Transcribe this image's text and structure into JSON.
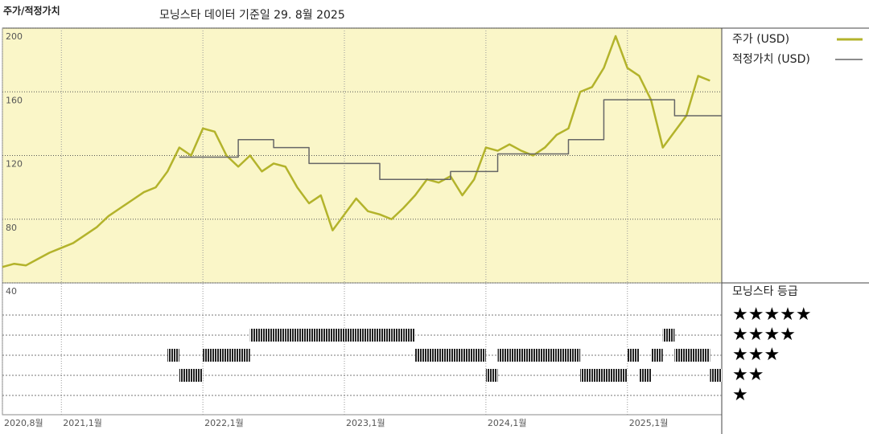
{
  "chart_data": {
    "type": "line",
    "title": "주가/적정가치",
    "subtitle": "모닝스타 데이터 기준일 29. 8월 2025",
    "x": [
      "2020-08",
      "2020-09",
      "2020-10",
      "2020-11",
      "2020-12",
      "2021-01",
      "2021-02",
      "2021-03",
      "2021-04",
      "2021-05",
      "2021-06",
      "2021-07",
      "2021-08",
      "2021-09",
      "2021-10",
      "2021-11",
      "2021-12",
      "2022-01",
      "2022-02",
      "2022-03",
      "2022-04",
      "2022-05",
      "2022-06",
      "2022-07",
      "2022-08",
      "2022-09",
      "2022-10",
      "2022-11",
      "2022-12",
      "2023-01",
      "2023-02",
      "2023-03",
      "2023-04",
      "2023-05",
      "2023-06",
      "2023-07",
      "2023-08",
      "2023-09",
      "2023-10",
      "2023-11",
      "2023-12",
      "2024-01",
      "2024-02",
      "2024-03",
      "2024-04",
      "2024-05",
      "2024-06",
      "2024-07",
      "2024-08",
      "2024-09",
      "2024-10",
      "2024-11",
      "2024-12",
      "2025-01",
      "2025-02",
      "2025-03",
      "2025-04",
      "2025-05",
      "2025-06",
      "2025-07",
      "2025-08"
    ],
    "series": [
      {
        "name": "주가 (USD)",
        "color": "#b3b32b",
        "values": [
          50,
          52,
          51,
          55,
          59,
          62,
          65,
          70,
          75,
          82,
          87,
          92,
          97,
          100,
          110,
          125,
          120,
          137,
          135,
          120,
          113,
          120,
          110,
          115,
          113,
          100,
          90,
          95,
          73,
          83,
          93,
          85,
          83,
          80,
          87,
          95,
          105,
          103,
          107,
          95,
          105,
          125,
          123,
          127,
          123,
          120,
          125,
          133,
          137,
          160,
          163,
          175,
          195,
          175,
          170,
          155,
          125,
          135,
          145,
          170,
          167
        ]
      },
      {
        "name": "적정가치 (USD)",
        "color": "#666666",
        "step": true,
        "values": [
          null,
          null,
          null,
          null,
          null,
          null,
          null,
          null,
          null,
          null,
          null,
          null,
          null,
          null,
          null,
          119,
          119,
          119,
          119,
          119,
          130,
          130,
          130,
          125,
          125,
          125,
          115,
          115,
          115,
          115,
          115,
          115,
          105,
          105,
          105,
          105,
          105,
          105,
          110,
          110,
          110,
          110,
          121,
          121,
          121,
          121,
          121,
          121,
          130,
          130,
          130,
          155,
          155,
          155,
          155,
          155,
          155,
          145,
          145,
          145,
          145
        ]
      }
    ],
    "xlim": [
      "2020-08",
      "2025-09"
    ],
    "xticks": [
      {
        "value": "2020-08",
        "label": "2020,8월"
      },
      {
        "value": "2021-01",
        "label": "2021,1월"
      },
      {
        "value": "2022-01",
        "label": "2022,1월"
      },
      {
        "value": "2023-01",
        "label": "2023,1월"
      },
      {
        "value": "2024-01",
        "label": "2024,1월"
      },
      {
        "value": "2025-01",
        "label": "2025,1월"
      }
    ],
    "ylim": [
      40,
      200
    ],
    "yticks": [
      40,
      80,
      120,
      160,
      200
    ],
    "background": "#faf6c8",
    "rating": {
      "title": "모닝스타 등급",
      "levels": [
        {
          "value": 1,
          "label": "★"
        },
        {
          "value": 2,
          "label": "★★"
        },
        {
          "value": 3,
          "label": "★★★"
        },
        {
          "value": 4,
          "label": "★★★★"
        },
        {
          "value": 5,
          "label": "★★★★★"
        }
      ],
      "values": [
        null,
        null,
        null,
        null,
        null,
        null,
        null,
        null,
        null,
        null,
        null,
        null,
        null,
        null,
        3,
        2,
        2,
        3,
        3,
        3,
        3,
        4,
        4,
        4,
        4,
        4,
        4,
        4,
        4,
        4,
        4,
        4,
        4,
        4,
        4,
        3,
        3,
        3,
        3,
        3,
        3,
        2,
        3,
        3,
        3,
        3,
        3,
        3,
        3,
        2,
        2,
        2,
        2,
        3,
        2,
        3,
        4,
        3,
        3,
        3,
        2
      ]
    }
  }
}
